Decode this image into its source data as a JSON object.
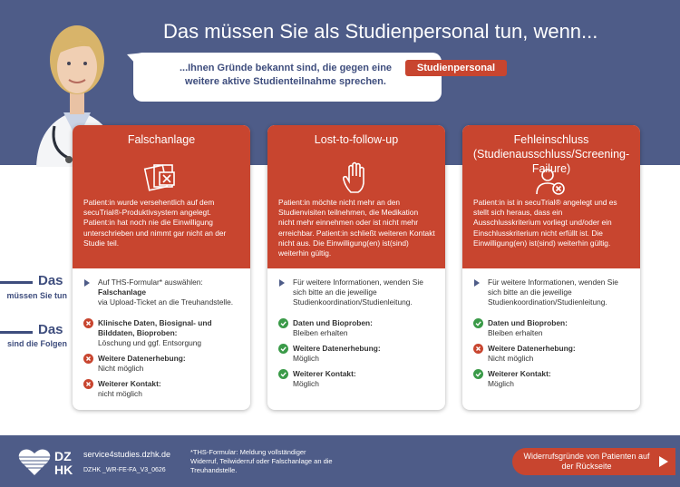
{
  "header": {
    "title": "Das müssen Sie als Studienpersonal tun, wenn...",
    "speech": "...Ihnen Gründe bekannt sind, die gegen eine weitere aktive Studienteilnahme sprechen.",
    "tag": "Studienpersonal"
  },
  "side_labels": [
    {
      "big": "Das",
      "small": "müssen Sie tun"
    },
    {
      "big": "Das",
      "small": "sind die Folgen"
    }
  ],
  "cards": [
    {
      "title": "Falschanlage",
      "description": "Patient:in wurde versehentlich auf dem secuTrial®-Produktivsystem angelegt. Patient:in hat noch nie die Einwilligung unterschrieben und nimmt gar nicht an der Studie teil.",
      "action": {
        "intro": "Auf THS-Formular* auswählen:",
        "highlight": "Falschanlage",
        "outro": "via Upload-Ticket an die Treuhandstelle."
      },
      "consequences": [
        {
          "label": "Klinische Daten, Biosignal- und Bilddaten, Bioproben:",
          "value": "Löschung und ggf. Entsorgung"
        },
        {
          "label": "Weitere Datenerhebung:",
          "value": "Nicht möglich"
        },
        {
          "label": "Weiterer Kontakt:",
          "value": "nicht möglich"
        }
      ]
    },
    {
      "title": "Lost-to-follow-up",
      "description": "Patient:in möchte nicht mehr an den Studienvisiten teilnehmen, die Medikation nicht mehr einnehmen oder ist nicht mehr erreichbar. Patient:in schließt weiteren Kontakt nicht aus. Die Einwilligung(en) ist(sind) weiterhin gültig.",
      "action": {
        "intro": "Für weitere Informationen, wenden Sie sich bitte an die jeweilige Studienkoordination/Studienleitung."
      },
      "consequences": [
        {
          "label": "Daten und Bioproben:",
          "value": "Bleiben erhalten"
        },
        {
          "label": "Weitere Datenerhebung:",
          "value": "Möglich"
        },
        {
          "label": "Weiterer Kontakt:",
          "value": "Möglich"
        }
      ]
    },
    {
      "title": "Fehleinschluss (Studienausschluss/Screening-Failure)",
      "description": "Patient:in ist in secuTrial® angelegt und es stellt sich heraus, dass ein Ausschlusskriterium vorliegt und/oder ein Einschlusskriterium nicht erfüllt ist. Die Einwilligung(en) ist(sind) weiterhin gültig.",
      "action": {
        "intro": "Für weitere Informationen, wenden Sie sich bitte an die jeweilige Studienkoordination/Studienleitung."
      },
      "consequences": [
        {
          "label": "Daten und Bioproben:",
          "value": "Bleiben erhalten"
        },
        {
          "label": "Weitere Datenerhebung:",
          "value": "Nicht möglich"
        },
        {
          "label": "Weiterer Kontakt:",
          "value": "Möglich"
        }
      ]
    }
  ],
  "footer": {
    "logo_top": "DZ",
    "logo_bottom": "HK",
    "url": "service4studies.dzhk.de",
    "code": "DZHK _WR-FE-FA_V3_0626",
    "footnote": "*THS-Formular: Meldung vollständiger Widerruf, Teilwiderruf oder Falschanlage an die Treuhandstelle.",
    "button": "Widerrufsgründe von Patienten auf der Rückseite"
  }
}
